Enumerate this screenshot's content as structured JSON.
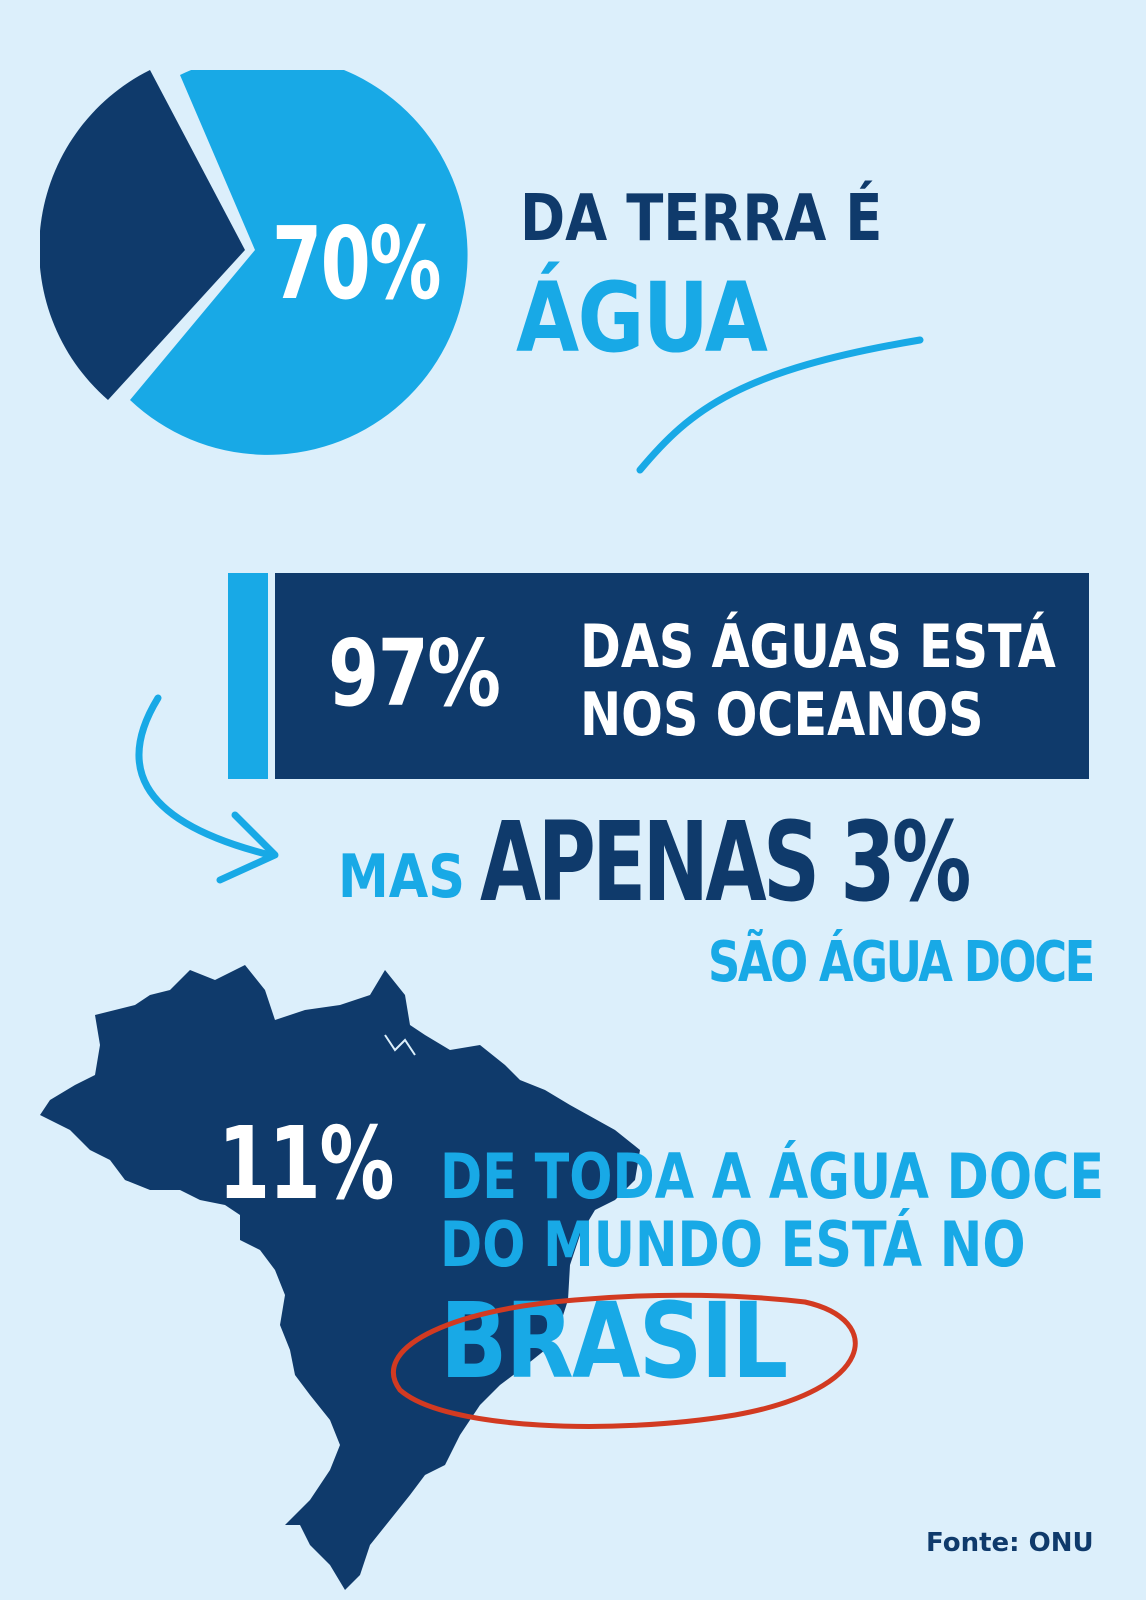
{
  "colors": {
    "background": "#dceffb",
    "navy": "#0f3a6b",
    "cyan": "#18a9e6",
    "red": "#d23a21"
  },
  "section1": {
    "percent": "70%",
    "line1": "DA TERRA É",
    "line2": "ÁGUA",
    "pie_fraction": 0.7
  },
  "section2": {
    "percent": "97%",
    "line1": "DAS ÁGUAS ESTÁ",
    "line2": "NOS OCEANOS"
  },
  "section3": {
    "prefix": "MAS",
    "main": "APENAS 3%",
    "sub": "SÃO ÁGUA DOCE"
  },
  "section4": {
    "percent": "11%",
    "line1": "DE TODA A ÁGUA DOCE",
    "line2": "DO MUNDO ESTÁ NO",
    "highlight": "BRASIL"
  },
  "source": "Fonte: ONU"
}
